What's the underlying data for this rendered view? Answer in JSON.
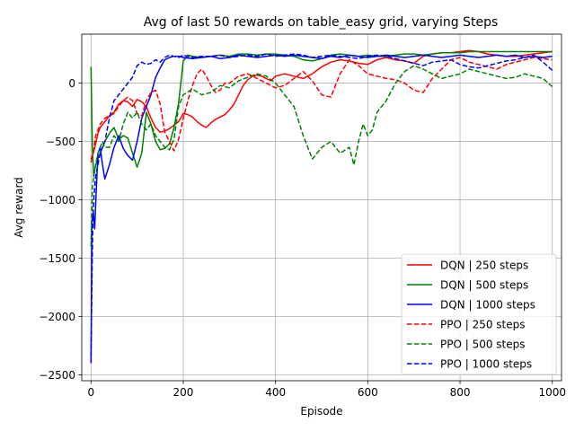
{
  "chart_data": {
    "type": "line",
    "title": "Avg of last 50 rewards on table_easy grid, varying Steps",
    "xlabel": "Episode",
    "ylabel": "Avg reward",
    "xlim": [
      -20,
      1020
    ],
    "ylim": [
      -2550,
      420
    ],
    "xticks": [
      0,
      200,
      400,
      600,
      800,
      1000
    ],
    "yticks": [
      -2500,
      -2000,
      -1500,
      -1000,
      -500,
      0
    ],
    "xtick_labels": [
      "0",
      "200",
      "400",
      "600",
      "800",
      "1000"
    ],
    "ytick_labels": [
      "−2500",
      "−2000",
      "−1500",
      "−1000",
      "−500",
      "0"
    ],
    "grid": true,
    "legend_position": "lower-right",
    "series": [
      {
        "name": "DQN | 250 steps",
        "color": "#ff0000",
        "dash": "solid",
        "x": [
          0,
          5,
          10,
          15,
          20,
          30,
          40,
          50,
          60,
          70,
          80,
          90,
          100,
          110,
          120,
          130,
          140,
          150,
          160,
          170,
          180,
          190,
          200,
          210,
          220,
          230,
          240,
          250,
          260,
          270,
          280,
          290,
          300,
          310,
          320,
          330,
          340,
          350,
          360,
          370,
          380,
          390,
          400,
          420,
          440,
          460,
          480,
          500,
          520,
          540,
          560,
          580,
          600,
          620,
          640,
          660,
          680,
          700,
          720,
          740,
          760,
          780,
          800,
          820,
          840,
          860,
          880,
          900,
          920,
          940,
          960,
          980,
          1000
        ],
        "y": [
          -680,
          -600,
          -520,
          -430,
          -380,
          -330,
          -280,
          -250,
          -180,
          -150,
          -160,
          -200,
          -140,
          -160,
          -200,
          -300,
          -380,
          -420,
          -410,
          -390,
          -360,
          -330,
          -260,
          -270,
          -290,
          -330,
          -360,
          -380,
          -340,
          -310,
          -290,
          -270,
          -230,
          -180,
          -100,
          -20,
          30,
          60,
          70,
          60,
          40,
          20,
          60,
          80,
          60,
          40,
          80,
          140,
          180,
          200,
          190,
          170,
          160,
          200,
          220,
          200,
          190,
          170,
          230,
          250,
          260,
          260,
          270,
          280,
          270,
          250,
          240,
          230,
          230,
          240,
          250,
          260,
          270
        ]
      },
      {
        "name": "DQN | 500 steps",
        "color": "#008000",
        "dash": "solid",
        "x": [
          0,
          3,
          6,
          10,
          15,
          20,
          25,
          30,
          40,
          50,
          60,
          70,
          80,
          90,
          100,
          110,
          120,
          130,
          140,
          150,
          160,
          170,
          180,
          190,
          200,
          210,
          220,
          240,
          260,
          280,
          300,
          320,
          340,
          360,
          380,
          400,
          420,
          440,
          460,
          480,
          500,
          520,
          540,
          560,
          580,
          600,
          620,
          640,
          660,
          680,
          700,
          720,
          740,
          760,
          780,
          800,
          820,
          840,
          860,
          880,
          900,
          920,
          940,
          960,
          980,
          1000
        ],
        "y": [
          140,
          -550,
          -800,
          -700,
          -650,
          -600,
          -550,
          -500,
          -430,
          -380,
          -480,
          -450,
          -470,
          -600,
          -720,
          -600,
          -250,
          -350,
          -500,
          -570,
          -560,
          -520,
          -380,
          -170,
          190,
          240,
          230,
          220,
          230,
          240,
          230,
          250,
          250,
          240,
          250,
          250,
          240,
          230,
          200,
          190,
          210,
          240,
          250,
          240,
          230,
          240,
          230,
          230,
          240,
          250,
          250,
          240,
          250,
          260,
          260,
          260,
          270,
          270,
          270,
          270,
          270,
          270,
          270,
          270,
          270,
          270
        ]
      },
      {
        "name": "DQN | 1000 steps",
        "color": "#0000ff",
        "dash": "solid",
        "x": [
          0,
          2,
          5,
          8,
          10,
          15,
          20,
          25,
          30,
          40,
          50,
          60,
          70,
          80,
          90,
          100,
          110,
          120,
          130,
          140,
          150,
          160,
          170,
          180,
          190,
          200,
          220,
          240,
          260,
          280,
          300,
          320,
          340,
          360,
          380,
          400,
          420,
          440,
          460,
          480,
          500,
          520,
          540,
          560,
          580,
          600,
          620,
          640,
          660,
          680,
          700,
          720,
          740,
          760,
          780,
          800,
          820,
          840,
          860,
          880,
          900,
          920,
          940,
          960,
          980,
          1000
        ],
        "y": [
          -2400,
          -1200,
          -1100,
          -1250,
          -1050,
          -600,
          -550,
          -700,
          -820,
          -700,
          -550,
          -450,
          -560,
          -620,
          -660,
          -500,
          -300,
          -200,
          -100,
          50,
          130,
          200,
          220,
          230,
          230,
          220,
          210,
          220,
          230,
          210,
          220,
          240,
          230,
          220,
          230,
          240,
          230,
          240,
          230,
          220,
          210,
          230,
          220,
          240,
          230,
          220,
          230,
          240,
          230,
          220,
          230,
          240,
          230,
          220,
          230,
          240,
          230,
          220,
          230,
          240,
          230,
          240,
          220,
          230,
          220,
          230
        ]
      },
      {
        "name": "PPO | 250 steps",
        "color": "#ff0000",
        "dash": "dashed",
        "x": [
          0,
          5,
          10,
          15,
          20,
          30,
          40,
          50,
          60,
          70,
          80,
          90,
          100,
          110,
          120,
          130,
          140,
          150,
          160,
          170,
          180,
          190,
          200,
          210,
          220,
          230,
          240,
          250,
          260,
          270,
          280,
          290,
          300,
          320,
          340,
          360,
          380,
          400,
          420,
          440,
          460,
          480,
          500,
          520,
          540,
          560,
          580,
          600,
          620,
          640,
          660,
          680,
          700,
          720,
          740,
          760,
          780,
          800,
          820,
          840,
          860,
          880,
          900,
          920,
          940,
          960,
          980,
          1000
        ],
        "y": [
          -650,
          -600,
          -450,
          -400,
          -350,
          -300,
          -280,
          -260,
          -200,
          -150,
          -120,
          -150,
          -260,
          -280,
          -150,
          -80,
          -60,
          -180,
          -420,
          -500,
          -580,
          -480,
          -300,
          -150,
          -20,
          80,
          120,
          60,
          -20,
          -80,
          -60,
          0,
          0,
          60,
          80,
          40,
          0,
          -40,
          -20,
          40,
          100,
          20,
          -100,
          -120,
          80,
          200,
          150,
          80,
          60,
          40,
          30,
          0,
          -60,
          -80,
          40,
          120,
          200,
          220,
          180,
          160,
          140,
          120,
          160,
          180,
          200,
          220,
          210,
          200
        ]
      },
      {
        "name": "PPO | 500 steps",
        "color": "#008000",
        "dash": "dashed",
        "x": [
          0,
          3,
          6,
          10,
          15,
          20,
          25,
          30,
          40,
          50,
          60,
          70,
          80,
          90,
          100,
          110,
          120,
          130,
          140,
          150,
          160,
          170,
          180,
          190,
          200,
          220,
          240,
          260,
          280,
          300,
          320,
          340,
          360,
          380,
          400,
          420,
          440,
          460,
          480,
          500,
          520,
          540,
          560,
          570,
          580,
          590,
          600,
          610,
          620,
          640,
          660,
          680,
          700,
          720,
          740,
          760,
          780,
          800,
          820,
          840,
          860,
          880,
          900,
          920,
          940,
          960,
          980,
          1000
        ],
        "y": [
          -1400,
          -900,
          -800,
          -700,
          -600,
          -550,
          -500,
          -550,
          -550,
          -450,
          -500,
          -350,
          -250,
          -300,
          -250,
          -350,
          -400,
          -350,
          -450,
          -500,
          -550,
          -570,
          -480,
          -200,
          -100,
          -50,
          -100,
          -80,
          -20,
          -40,
          20,
          50,
          80,
          60,
          0,
          -100,
          -200,
          -450,
          -650,
          -550,
          -500,
          -600,
          -550,
          -700,
          -500,
          -350,
          -450,
          -400,
          -250,
          -150,
          0,
          100,
          150,
          120,
          80,
          40,
          60,
          80,
          120,
          100,
          80,
          60,
          40,
          50,
          80,
          60,
          40,
          -30
        ]
      },
      {
        "name": "PPO | 1000 steps",
        "color": "#0000ff",
        "dash": "dashed",
        "x": [
          0,
          2,
          4,
          6,
          10,
          15,
          20,
          25,
          30,
          40,
          50,
          60,
          70,
          80,
          90,
          100,
          110,
          120,
          130,
          140,
          150,
          160,
          170,
          180,
          190,
          200,
          220,
          240,
          260,
          280,
          300,
          320,
          340,
          360,
          380,
          400,
          420,
          440,
          460,
          480,
          500,
          520,
          540,
          560,
          580,
          600,
          620,
          640,
          660,
          680,
          700,
          720,
          740,
          760,
          780,
          800,
          820,
          840,
          860,
          880,
          900,
          920,
          940,
          960,
          980,
          1000
        ],
        "y": [
          -2400,
          -1700,
          -1200,
          -1000,
          -800,
          -700,
          -600,
          -550,
          -500,
          -300,
          -150,
          -100,
          -50,
          0,
          50,
          150,
          180,
          160,
          170,
          200,
          180,
          220,
          240,
          230,
          220,
          240,
          220,
          230,
          230,
          240,
          220,
          230,
          240,
          230,
          250,
          230,
          240,
          250,
          240,
          220,
          230,
          240,
          230,
          220,
          210,
          230,
          240,
          230,
          210,
          190,
          170,
          150,
          180,
          190,
          200,
          160,
          140,
          130,
          150,
          170,
          190,
          200,
          220,
          240,
          180,
          110
        ]
      }
    ]
  }
}
